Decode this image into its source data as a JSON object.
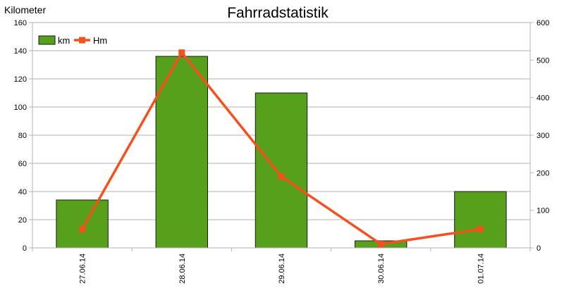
{
  "chart_data": {
    "type": "bar",
    "title": "Fahrradstatistik",
    "ylabel": "Kilometer",
    "categories": [
      "27.06.14",
      "28.06.14",
      "29.06.14",
      "30.06.14",
      "01.07.14"
    ],
    "series": [
      {
        "name": "km",
        "type": "bar",
        "axis": "left",
        "values": [
          34,
          136,
          110,
          5,
          40
        ],
        "color": "#57a01c"
      },
      {
        "name": "Hm",
        "type": "line",
        "axis": "right",
        "values": [
          50,
          520,
          190,
          10,
          50
        ],
        "color": "#f4511e"
      }
    ],
    "ylim": [
      0,
      160
    ],
    "yticks": [
      0,
      20,
      40,
      60,
      80,
      100,
      120,
      140,
      160
    ],
    "y2lim": [
      0,
      600
    ],
    "y2ticks": [
      0,
      100,
      200,
      300,
      400,
      500,
      600
    ],
    "grid": true,
    "legend": "top-left"
  }
}
